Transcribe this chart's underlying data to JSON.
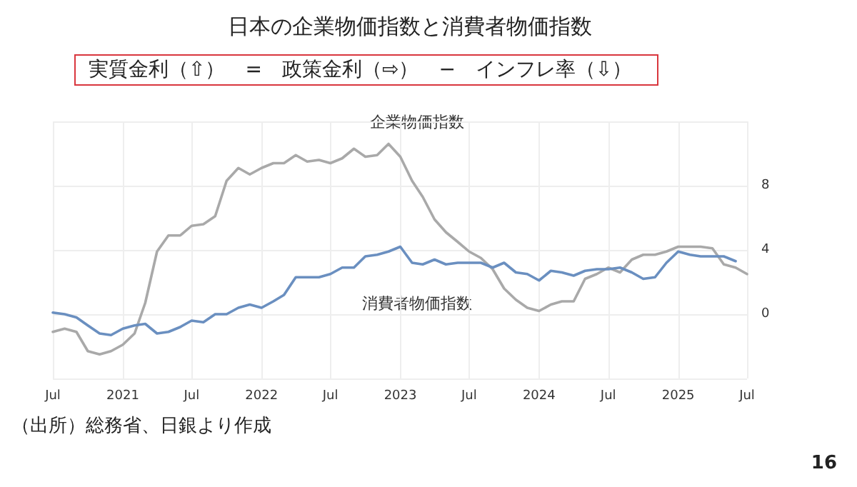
{
  "chart_data": {
    "type": "line",
    "title": "日本の企業物価指数と消費者物価指数",
    "subtitle": "実質金利（⇧）　=　政策金利（⇨）　−　インフレ率（⇩）",
    "annotations": [
      "（出所）総務省、日銀より作成",
      "16"
    ],
    "x": [
      "2020-07",
      "2020-08",
      "2020-09",
      "2020-10",
      "2020-11",
      "2020-12",
      "2021-01",
      "2021-02",
      "2021-03",
      "2021-04",
      "2021-05",
      "2021-06",
      "2021-07",
      "2021-08",
      "2021-09",
      "2021-10",
      "2021-11",
      "2021-12",
      "2022-01",
      "2022-02",
      "2022-03",
      "2022-04",
      "2022-05",
      "2022-06",
      "2022-07",
      "2022-08",
      "2022-09",
      "2022-10",
      "2022-11",
      "2022-12",
      "2023-01",
      "2023-02",
      "2023-03",
      "2023-04",
      "2023-05",
      "2023-06",
      "2023-07",
      "2023-08",
      "2023-09",
      "2023-10",
      "2023-11",
      "2023-12",
      "2024-01",
      "2024-02",
      "2024-03",
      "2024-04",
      "2024-05",
      "2024-06",
      "2024-07",
      "2024-08",
      "2024-09",
      "2024-10",
      "2024-11",
      "2024-12",
      "2025-01",
      "2025-02",
      "2025-03",
      "2025-04",
      "2025-05",
      "2025-06",
      "2025-07"
    ],
    "series": [
      {
        "name": "企業物価指数",
        "color": "#a9a9a9",
        "values": [
          -1.1,
          -0.9,
          -1.1,
          -2.3,
          -2.5,
          -2.3,
          -1.9,
          -1.2,
          0.7,
          3.9,
          4.9,
          4.9,
          5.5,
          5.6,
          6.1,
          8.3,
          9.1,
          8.7,
          9.1,
          9.4,
          9.4,
          9.9,
          9.5,
          9.6,
          9.4,
          9.7,
          10.3,
          9.8,
          9.9,
          10.6,
          9.8,
          8.3,
          7.3,
          5.9,
          5.1,
          4.5,
          3.9,
          3.5,
          2.8,
          1.6,
          0.9,
          0.4,
          0.2,
          0.6,
          0.8,
          0.8,
          2.2,
          2.5,
          2.9,
          2.6,
          3.4,
          3.7,
          3.7,
          3.9,
          4.2,
          4.2,
          4.2,
          4.1,
          3.1,
          2.9,
          2.5
        ]
      },
      {
        "name": "消費者物価指数",
        "color": "#6a8fc0",
        "values": [
          0.1,
          0.0,
          -0.2,
          -0.7,
          -1.2,
          -1.3,
          -0.9,
          -0.7,
          -0.6,
          -1.2,
          -1.1,
          -0.8,
          -0.4,
          -0.5,
          0.0,
          0.0,
          0.4,
          0.6,
          0.4,
          0.8,
          1.2,
          2.3,
          2.3,
          2.3,
          2.5,
          2.9,
          2.9,
          3.6,
          3.7,
          3.9,
          4.2,
          3.2,
          3.1,
          3.4,
          3.1,
          3.2,
          3.2,
          3.2,
          2.9,
          3.2,
          2.6,
          2.5,
          2.1,
          2.7,
          2.6,
          2.4,
          2.7,
          2.8,
          2.8,
          2.9,
          2.6,
          2.2,
          2.3,
          3.2,
          3.9,
          3.7,
          3.6,
          3.6,
          3.6,
          3.3,
          null
        ]
      }
    ],
    "xlim": [
      "2020-07",
      "2025-07"
    ],
    "xticks": [
      {
        "value": "2020-07",
        "label": "Jul"
      },
      {
        "value": "2021-01",
        "label": "2021"
      },
      {
        "value": "2021-07",
        "label": "Jul"
      },
      {
        "value": "2022-01",
        "label": "2022"
      },
      {
        "value": "2022-07",
        "label": "Jul"
      },
      {
        "value": "2023-01",
        "label": "2023"
      },
      {
        "value": "2023-07",
        "label": "Jul"
      },
      {
        "value": "2024-01",
        "label": "2024"
      },
      {
        "value": "2024-07",
        "label": "Jul"
      },
      {
        "value": "2025-01",
        "label": "2025"
      },
      {
        "value": "2025-07",
        "label": "Jul"
      }
    ],
    "ylim": [
      -4,
      12
    ],
    "yticks": [
      {
        "value": -4,
        "label": null
      },
      0,
      4,
      8,
      {
        "value": 12,
        "label": null
      }
    ],
    "grid": true,
    "legend": false,
    "marker": "none",
    "line_style": "solid"
  }
}
